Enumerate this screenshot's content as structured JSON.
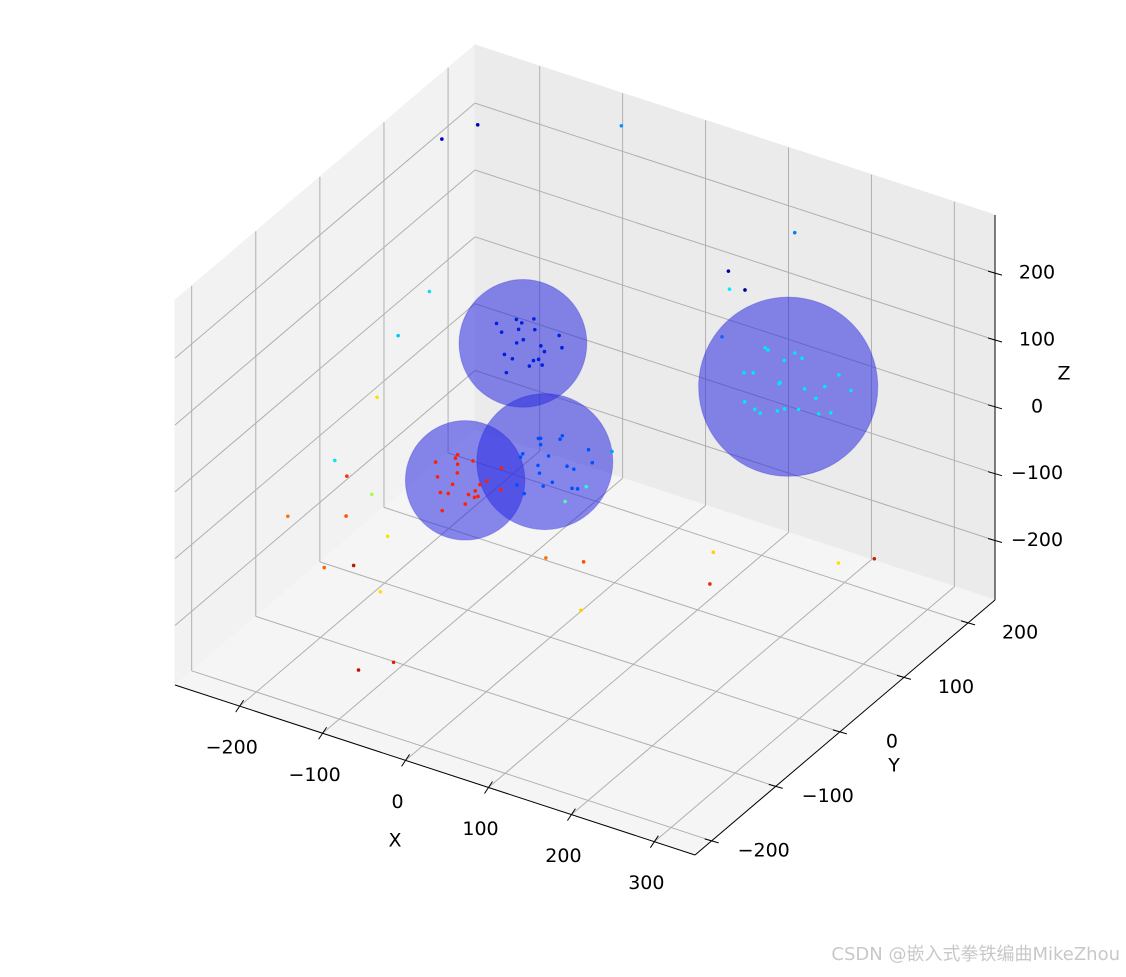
{
  "chart_data": {
    "type": "scatter3d",
    "xlabel": "X",
    "ylabel": "Y",
    "zlabel": "Z",
    "xlim": [
      -278,
      349
    ],
    "ylim": [
      -226,
      242
    ],
    "zlim": [
      -289,
      287
    ],
    "xticks": [
      {
        "value": -200,
        "label": "−200"
      },
      {
        "value": -100,
        "label": "−100"
      },
      0,
      100,
      200,
      300
    ],
    "yticks": [
      {
        "value": -200,
        "label": "−200"
      },
      {
        "value": -100,
        "label": "−100"
      },
      0,
      100,
      200
    ],
    "zticks": [
      {
        "value": -200,
        "label": "−200"
      },
      {
        "value": -100,
        "label": "−100"
      },
      0,
      100,
      200
    ],
    "grid": true,
    "spheres": [
      {
        "center": [
          -109,
          8,
          -105
        ],
        "radius": 72,
        "color": "#2a2ae0"
      },
      {
        "center": [
          -13,
          8,
          -38
        ],
        "radius": 82,
        "color": "#2a2ae0"
      },
      {
        "center": [
          -112,
          102,
          22
        ],
        "radius": 77,
        "color": "#2a2ae0"
      },
      {
        "center": [
          136,
          195,
          -18
        ],
        "radius": 108,
        "color": "#2a2ae0"
      }
    ],
    "series": [
      {
        "color": "#ff2000",
        "points": [
          [
            -120,
            10,
            -100
          ],
          [
            -95,
            -5,
            -110
          ],
          [
            -130,
            20,
            -90
          ],
          [
            -100,
            30,
            -120
          ],
          [
            -85,
            0,
            -95
          ],
          [
            -115,
            -20,
            -130
          ],
          [
            -140,
            5,
            -110
          ],
          [
            -105,
            15,
            -80
          ],
          [
            -90,
            40,
            -105
          ],
          [
            -125,
            -10,
            -115
          ],
          [
            -110,
            25,
            -135
          ],
          [
            -80,
            -15,
            -100
          ],
          [
            -135,
            30,
            -95
          ],
          [
            -100,
            -30,
            -90
          ],
          [
            -118,
            0,
            -108
          ],
          [
            -95,
            10,
            -125
          ],
          [
            -150,
            15,
            -100
          ],
          [
            -75,
            20,
            -115
          ],
          [
            -108,
            -5,
            -70
          ],
          [
            -112,
            12,
            -145
          ]
        ]
      },
      {
        "color": "#0050ff",
        "points": [
          [
            -10,
            10,
            -30
          ],
          [
            10,
            -10,
            -45
          ],
          [
            -30,
            20,
            -20
          ],
          [
            5,
            30,
            -60
          ],
          [
            20,
            0,
            -25
          ],
          [
            -25,
            -20,
            -55
          ],
          [
            -40,
            5,
            -40
          ],
          [
            0,
            15,
            -5
          ],
          [
            15,
            40,
            -35
          ],
          [
            -20,
            -15,
            -70
          ],
          [
            -5,
            25,
            -10
          ],
          [
            30,
            -5,
            -50
          ],
          [
            -35,
            30,
            -30
          ],
          [
            10,
            -30,
            -15
          ],
          [
            -15,
            0,
            -38
          ],
          [
            25,
            10,
            -65
          ],
          [
            -45,
            15,
            -45
          ],
          [
            35,
            20,
            -30
          ],
          [
            -8,
            -5,
            0
          ],
          [
            -18,
            12,
            -80
          ]
        ]
      },
      {
        "color": "#0020e0",
        "points": [
          [
            -110,
            100,
            30
          ],
          [
            -90,
            90,
            15
          ],
          [
            -130,
            115,
            40
          ],
          [
            -100,
            120,
            0
          ],
          [
            -85,
            95,
            35
          ],
          [
            -115,
            80,
            -5
          ],
          [
            -140,
            105,
            25
          ],
          [
            -105,
            110,
            55
          ],
          [
            -90,
            130,
            20
          ],
          [
            -125,
            90,
            10
          ],
          [
            -100,
            105,
            45
          ],
          [
            -80,
            85,
            25
          ],
          [
            -135,
            125,
            15
          ],
          [
            -100,
            70,
            30
          ],
          [
            -118,
            100,
            22
          ],
          [
            -95,
            110,
            -10
          ],
          [
            -150,
            110,
            30
          ],
          [
            -75,
            115,
            20
          ],
          [
            -108,
            95,
            60
          ],
          [
            -112,
            112,
            -20
          ]
        ]
      },
      {
        "color": "#00e8f0",
        "points": [
          [
            130,
            190,
            -10
          ],
          [
            160,
            180,
            -30
          ],
          [
            100,
            210,
            10
          ],
          [
            150,
            220,
            -50
          ],
          [
            180,
            195,
            0
          ],
          [
            115,
            170,
            -40
          ],
          [
            90,
            200,
            -20
          ],
          [
            145,
            205,
            20
          ],
          [
            170,
            230,
            -15
          ],
          [
            110,
            185,
            -60
          ],
          [
            140,
            200,
            30
          ],
          [
            195,
            185,
            -25
          ],
          [
            85,
            225,
            -5
          ],
          [
            150,
            160,
            -20
          ],
          [
            125,
            195,
            -18
          ],
          [
            165,
            205,
            -55
          ],
          [
            75,
            205,
            -30
          ],
          [
            200,
            210,
            -10
          ],
          [
            135,
            190,
            25
          ],
          [
            120,
            210,
            -70
          ],
          [
            175,
            170,
            15
          ],
          [
            95,
            180,
            -45
          ]
        ]
      },
      {
        "colors": [
          "#0000c0",
          "#0000c0",
          "#1090ff",
          "#10d8ff",
          "#00c8ff",
          "#ffe000",
          "#10e0ff",
          "#ff7000",
          "#ff5000",
          "#ff3000",
          "#a0ff50",
          "#ffe000",
          "#ff6000",
          "#c01000",
          "#ffe000",
          "#e02000",
          "#b02000",
          "#ffd000",
          "#ff7000",
          "#ff5000",
          "#ffd000",
          "#00a0ff",
          "#40ffb0",
          "#20ffd0",
          "#0000a0",
          "#000090",
          "#1060ff",
          "#0080ff",
          "#ffe000",
          "#c02000",
          "#e03010",
          "#00f0ff"
        ],
        "points": [
          [
            -270,
            180,
            200
          ],
          [
            -250,
            210,
            205
          ],
          [
            -100,
            240,
            240
          ],
          [
            -200,
            70,
            90
          ],
          [
            -230,
            60,
            20
          ],
          [
            -240,
            40,
            -60
          ],
          [
            -260,
            0,
            -130
          ],
          [
            -278,
            -50,
            -180
          ],
          [
            -200,
            -60,
            -140
          ],
          [
            -230,
            -20,
            -125
          ],
          [
            -200,
            -20,
            -140
          ],
          [
            -150,
            -60,
            -150
          ],
          [
            -180,
            -120,
            -160
          ],
          [
            -100,
            -170,
            -240
          ],
          [
            -120,
            -110,
            -180
          ],
          [
            -50,
            -180,
            -200
          ],
          [
            -160,
            -100,
            -165
          ],
          [
            60,
            -30,
            -200
          ],
          [
            10,
            -20,
            -150
          ],
          [
            40,
            0,
            -160
          ],
          [
            150,
            60,
            -150
          ],
          [
            20,
            70,
            -60
          ],
          [
            10,
            10,
            -90
          ],
          [
            20,
            30,
            -80
          ],
          [
            60,
            200,
            120
          ],
          [
            80,
            200,
            100
          ],
          [
            60,
            190,
            30
          ],
          [
            140,
            200,
            210
          ],
          [
            270,
            100,
            -150
          ],
          [
            290,
            130,
            -160
          ],
          [
            200,
            -10,
            -120
          ],
          [
            100,
            150,
            150
          ]
        ]
      }
    ],
    "watermark": "CSDN @嵌入式拳铁编曲MikeZhou"
  }
}
